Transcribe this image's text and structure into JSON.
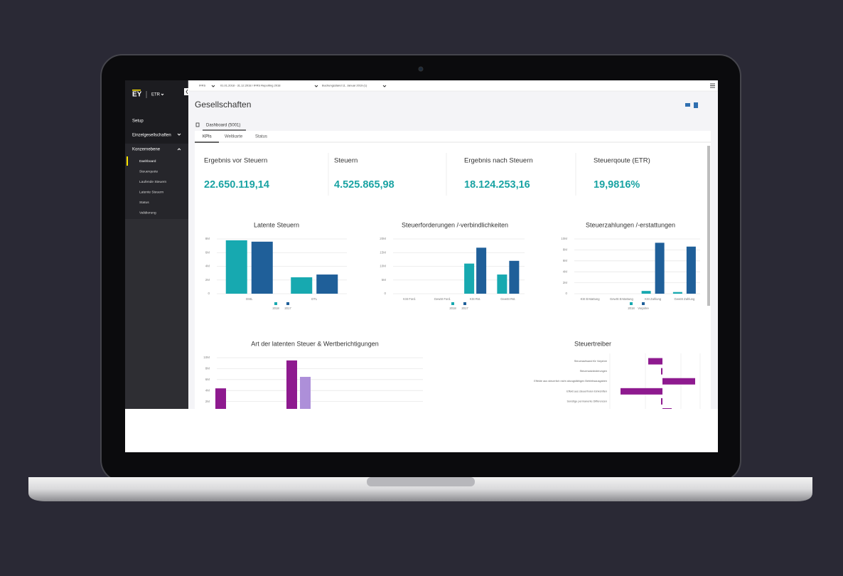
{
  "top_bar": {
    "filters": [
      "IFRS",
      "01.01.2018 - 31.12.2018 / IFRS Reporting 2018",
      "Buchungsstand 11. Januar 2019 (1)"
    ]
  },
  "sidebar": {
    "brand": "EY",
    "app": "ETR",
    "items": [
      "Setup",
      "Einzelgesellschaften",
      "Konzernebene"
    ],
    "subitems": [
      "Dashboard",
      "Steuerquote",
      "Laufende Steuern",
      "Latente Steuern",
      "Status",
      "Validierung"
    ]
  },
  "header": {
    "title": "Gesellschaften",
    "tab": "Dashboard (5001)",
    "subtabs": [
      "KPIs",
      "Weltkarte",
      "Status"
    ]
  },
  "kpis": [
    {
      "label": "Ergebnis vor Steuern",
      "value": "22.650.119,14"
    },
    {
      "label": "Steuern",
      "value": "4.525.865,98"
    },
    {
      "label": "Ergebnis nach Steuern",
      "value": "18.124.253,16"
    },
    {
      "label": "Steuerqoute (ETR)",
      "value": "19,9816%"
    }
  ],
  "chart_data": [
    {
      "type": "bar",
      "title": "Latente Steuern",
      "categories": [
        "DStL",
        "DTL"
      ],
      "series": [
        {
          "name": "2018",
          "color": "#17a9b0",
          "values": [
            7800000,
            2400000
          ]
        },
        {
          "name": "2017",
          "color": "#1f5f99",
          "values": [
            7600000,
            2800000
          ]
        }
      ],
      "ylim": [
        0,
        8000000
      ],
      "yticks": [
        0,
        {
          "value": 2000000,
          "label": "2M"
        },
        {
          "value": 4000000,
          "label": "4M"
        },
        {
          "value": 6000000,
          "label": "6M"
        },
        {
          "value": 8000000,
          "label": "8M"
        }
      ],
      "grid": true,
      "legend": "bottom"
    },
    {
      "type": "bar",
      "title": "Steuerforderungen /-verbindlichkeiten",
      "categories": [
        "KSt Ford.",
        "GewSt Ford.",
        "KSt Rst.",
        "GewSt Rst."
      ],
      "series": [
        {
          "name": "2018",
          "color": "#17a9b0",
          "values": [
            0,
            0,
            11000000,
            7000000
          ]
        },
        {
          "name": "2017",
          "color": "#1f5f99",
          "values": [
            0,
            0,
            16800000,
            12000000
          ]
        }
      ],
      "ylim": [
        0,
        20000000
      ],
      "yticks": [
        0,
        {
          "value": 5000000,
          "label": "5M"
        },
        {
          "value": 10000000,
          "label": "10M"
        },
        {
          "value": 15000000,
          "label": "15M"
        },
        {
          "value": 20000000,
          "label": "20M"
        }
      ],
      "grid": true,
      "legend": "bottom"
    },
    {
      "type": "bar",
      "title": "Steuerzahlungen /-erstattungen",
      "categories": [
        "KSt Erstattung",
        "GewSt Erstattung",
        "KSt Zahlung",
        "GewSt Zahlung"
      ],
      "series": [
        {
          "name": "2018",
          "color": "#17a9b0",
          "values": [
            0,
            0,
            500000,
            300000
          ]
        },
        {
          "name": "Vorjahre",
          "color": "#1f5f99",
          "values": [
            0,
            0,
            9300000,
            8600000
          ]
        }
      ],
      "ylim": [
        0,
        10000000
      ],
      "yticks": [
        0,
        {
          "value": 2000000,
          "label": "2M"
        },
        {
          "value": 4000000,
          "label": "4M"
        },
        {
          "value": 6000000,
          "label": "6M"
        },
        {
          "value": 8000000,
          "label": "8M"
        },
        {
          "value": 10000000,
          "label": "10M"
        }
      ],
      "grid": true,
      "legend": "bottom"
    },
    {
      "type": "bar",
      "title": "Art der latenten Steuer & Wertberichtigungen",
      "categories": [
        null,
        null
      ],
      "series": [
        {
          "color": "#8e1a8f",
          "values": [
            4400000,
            9500000
          ]
        },
        {
          "color": "#ad8fd9",
          "values": [
            null,
            6500000
          ]
        }
      ],
      "ylim": [
        0,
        10000000
      ],
      "yticks": [
        {
          "value": 2000000,
          "label": "2M"
        },
        {
          "value": 4000000,
          "label": "4M"
        },
        {
          "value": 6000000,
          "label": "6M"
        },
        {
          "value": 8000000,
          "label": "8M"
        },
        {
          "value": 10000000,
          "label": "10M"
        }
      ],
      "grid": true
    },
    {
      "type": "barh",
      "title": "Steuertreiber",
      "categories": [
        "Steueraufwand für Vorjahre",
        "Steuersatzänderungen",
        "Effekte aus steuerlich nicht abzugsfähigen Betriebsausgaben",
        "Effekt aus steuerfreien Einkünften",
        "Sonstige permanente Differenzen",
        null
      ],
      "values": [
        -1.0,
        -0.1,
        2.3,
        -2.95,
        -0.1,
        0.65
      ],
      "color": "#8e1a8f",
      "xlim": [
        -3.7,
        2.65
      ]
    }
  ]
}
